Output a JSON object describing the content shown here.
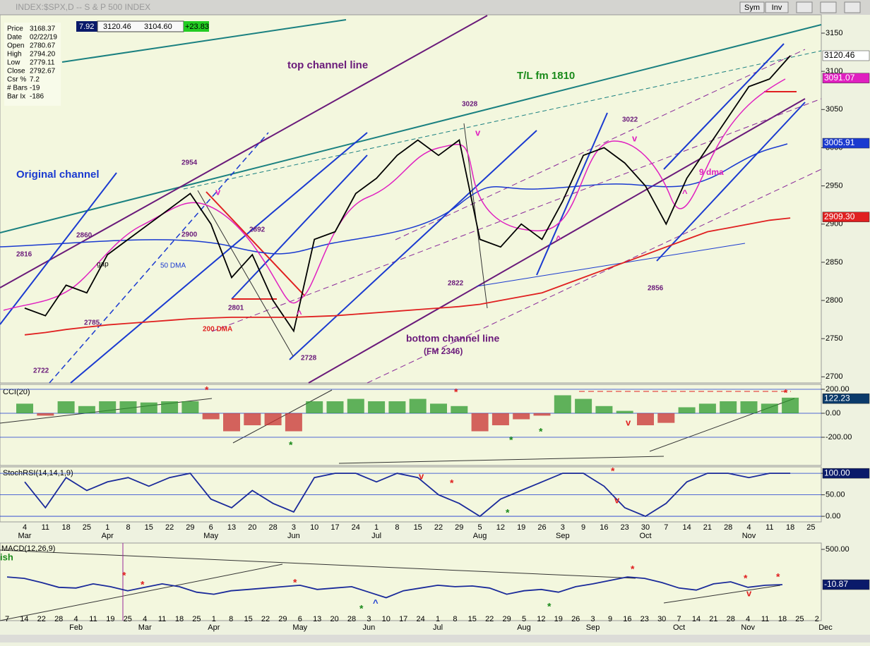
{
  "window": {
    "title": "INDEX:$SPX,D -- S & P 500 INDEX",
    "buttons": [
      "Sym",
      "Inv"
    ],
    "toolbar": [
      "7.92",
      "3120.46",
      "3104.60",
      "+23.83"
    ]
  },
  "info_panel": [
    [
      "Price",
      "3168.37"
    ],
    [
      "Date",
      "02/22/19"
    ],
    [
      "Open",
      "2780.67"
    ],
    [
      "High",
      "2794.20"
    ],
    [
      "Low",
      "2779.11"
    ],
    [
      "Close",
      "2792.67"
    ],
    [
      "Csr %",
      "7.2"
    ],
    [
      "# Bars",
      "-19"
    ],
    [
      "Bar Ix",
      "-186"
    ]
  ],
  "annotations": [
    {
      "text": "top channel line",
      "color": "#6a1a7a"
    },
    {
      "text": "T/L fm 1810",
      "color": "#1a8a1a"
    },
    {
      "text": "Original channel",
      "color": "#1a3ad0"
    },
    {
      "text": "bottom channel line",
      "color": "#6a1a7a"
    },
    {
      "text": "(FM 2346)",
      "color": "#6a1a7a"
    },
    {
      "text": "50 DMA",
      "color": "#1a3ad0"
    },
    {
      "text": "9 dma",
      "color": "#e020c0"
    },
    {
      "text": "2954",
      "color": "#6a1a7a"
    },
    {
      "text": "2860",
      "color": "#6a1a7a"
    },
    {
      "text": "2816",
      "color": "#6a1a7a"
    },
    {
      "text": "2900",
      "color": "#6a1a7a"
    },
    {
      "text": "2892",
      "color": "#6a1a7a"
    },
    {
      "text": "2801",
      "color": "#6a1a7a"
    },
    {
      "text": "2785",
      "color": "#6a1a7a"
    },
    {
      "text": "2722",
      "color": "#6a1a7a"
    },
    {
      "text": "2728",
      "color": "#6a1a7a"
    },
    {
      "text": "3028",
      "color": "#6a1a7a"
    },
    {
      "text": "3022",
      "color": "#6a1a7a"
    },
    {
      "text": "2822",
      "color": "#6a1a7a"
    },
    {
      "text": "2856",
      "color": "#6a1a7a"
    },
    {
      "text": "gap",
      "color": "#000000"
    },
    {
      "text": "v",
      "color": "#e020c0"
    },
    {
      "text": "v",
      "color": "#e020c0"
    },
    {
      "text": "v",
      "color": "#e020c0"
    },
    {
      "text": "^",
      "color": "#e020c0"
    },
    {
      "text": "^",
      "color": "#e020c0"
    },
    {
      "text": "^",
      "color": "#e020c0"
    },
    {
      "text": "*",
      "color": "#e02020"
    },
    {
      "text": "*",
      "color": "#e02020"
    },
    {
      "text": "*",
      "color": "#e02020"
    },
    {
      "text": "*",
      "color": "#1a8a1a"
    },
    {
      "text": "*",
      "color": "#1a8a1a"
    },
    {
      "text": "*",
      "color": "#1a8a1a"
    },
    {
      "text": "v",
      "color": "#e02020"
    },
    {
      "text": "v",
      "color": "#e02020"
    },
    {
      "text": "*",
      "color": "#e02020"
    },
    {
      "text": "*",
      "color": "#e02020"
    },
    {
      "text": "*",
      "color": "#1a8a1a"
    },
    {
      "text": "v",
      "color": "#e02020"
    },
    {
      "text": "*",
      "color": "#e02020"
    },
    {
      "text": "*",
      "color": "#e02020"
    },
    {
      "text": "*",
      "color": "#e02020"
    },
    {
      "text": "*",
      "color": "#e02020"
    },
    {
      "text": "*",
      "color": "#e02020"
    },
    {
      "text": "*",
      "color": "#e02020"
    },
    {
      "text": "*",
      "color": "#1a8a1a"
    },
    {
      "text": "*",
      "color": "#1a8a1a"
    },
    {
      "text": "^",
      "color": "#1a3ad0"
    },
    {
      "text": "v",
      "color": "#e02020"
    },
    {
      "text": "ish",
      "color": "#1a8a1a"
    }
  ],
  "chart_data": [
    {
      "type": "line",
      "categories": [
        4,
        11,
        18,
        25,
        1,
        8,
        15,
        22,
        29,
        6,
        13,
        20,
        28,
        3,
        10,
        17,
        24,
        1,
        8,
        15,
        22,
        29,
        5,
        12,
        19,
        26,
        3,
        9,
        16,
        23,
        30,
        7,
        14,
        21,
        28,
        4,
        11,
        18,
        25
      ],
      "months": [
        "Mar",
        "Apr",
        "May",
        "Jun",
        "Jul",
        "Aug",
        "Sep",
        "Oct",
        "Nov"
      ],
      "series": [
        {
          "color": "#000000",
          "values": [
            2790,
            2780,
            2820,
            2810,
            2860,
            2880,
            2900,
            2920,
            2940,
            2900,
            2830,
            2860,
            2800,
            2760,
            2880,
            2890,
            2940,
            2960,
            2990,
            3010,
            2990,
            3010,
            2880,
            2870,
            2900,
            2880,
            2930,
            2990,
            3000,
            2980,
            2950,
            2900,
            2960,
            3000,
            3040,
            3080,
            3090,
            3120.46,
            null
          ]
        },
        {
          "name": "200 DMA",
          "color": "#e02020",
          "values": [
            2755,
            2758,
            2762,
            2765,
            2768,
            2770,
            2772,
            2774,
            2776,
            2777,
            2778,
            2778,
            2778,
            2778,
            2779,
            2780,
            2782,
            2784,
            2786,
            2788,
            2790,
            2792,
            2795,
            2800,
            2805,
            2810,
            2820,
            2830,
            2840,
            2850,
            2860,
            2870,
            2880,
            2890,
            2895,
            2900,
            2905,
            2908,
            null
          ]
        }
      ],
      "ylim": [
        2692,
        3174
      ],
      "yticks": [
        2700,
        2750,
        2800,
        2850,
        2900,
        2950,
        3000,
        3050,
        3100,
        3150
      ],
      "grid": false,
      "tags": [
        {
          "value": 3120.46,
          "color": "#ffffff",
          "text_color": "#000000"
        },
        {
          "value": 3091.07,
          "color": "#e020c0",
          "text_color": "#ffffff"
        },
        {
          "value": 3005.91,
          "color": "#1a3ad0",
          "text_color": "#ffffff"
        },
        {
          "value": 2909.3,
          "label": "2909.30",
          "color": "#e02020",
          "text_color": "#ffffff"
        }
      ]
    },
    {
      "type": "bar",
      "title": "CCI(20)",
      "values": [
        80,
        -20,
        100,
        60,
        100,
        100,
        90,
        100,
        100,
        -50,
        -150,
        -100,
        -100,
        -150,
        100,
        100,
        120,
        100,
        100,
        120,
        80,
        60,
        -150,
        -100,
        -50,
        -20,
        150,
        120,
        60,
        20,
        -100,
        -80,
        50,
        80,
        100,
        100,
        80,
        130,
        null
      ],
      "pos_color": "#2e9a2e",
      "neg_color": "#c83030",
      "ylim": [
        -435,
        241
      ],
      "yticks": [
        {
          "value": 200,
          "label": "200.00"
        },
        {
          "value": 0,
          "label": "0.00"
        },
        {
          "value": -200,
          "label": "-200.00"
        }
      ],
      "grid": true,
      "tags": [
        {
          "value": 122.23,
          "color": "#0a3a6a",
          "text_color": "#ffffff"
        }
      ]
    },
    {
      "type": "line",
      "title": "StochRSI(14,14,1,9)",
      "series": [
        {
          "color": "#1a2a9a",
          "values": [
            80,
            20,
            90,
            60,
            80,
            90,
            70,
            90,
            100,
            40,
            20,
            60,
            30,
            10,
            90,
            100,
            100,
            80,
            100,
            90,
            50,
            30,
            0,
            40,
            60,
            80,
            100,
            100,
            70,
            20,
            0,
            30,
            80,
            100,
            100,
            90,
            100,
            100,
            null
          ]
        }
      ],
      "ylim": [
        -13,
        115
      ],
      "yticks": [
        {
          "value": 100,
          "label": "100.00"
        },
        {
          "value": 50,
          "label": "50.00"
        },
        {
          "value": 0,
          "label": "0.00"
        }
      ],
      "grid": true,
      "tags": [
        {
          "value": 100,
          "label": "100.00",
          "color": "#0a1a6a",
          "text_color": "#ffffff"
        }
      ]
    },
    {
      "type": "line",
      "title": "MACD(12,26,9)",
      "categories": [
        7,
        14,
        22,
        28,
        4,
        11,
        19,
        25,
        4,
        11,
        18,
        25,
        1,
        8,
        15,
        22,
        29,
        6,
        13,
        20,
        28,
        3,
        10,
        17,
        24,
        1,
        8,
        15,
        22,
        29,
        5,
        12,
        19,
        26,
        3,
        9,
        16,
        23,
        30,
        7,
        14,
        21,
        28,
        4,
        11,
        18,
        25,
        2
      ],
      "months": [
        "Feb",
        "Mar",
        "Apr",
        "May",
        "Jun",
        "Jul",
        "Aug",
        "Sep",
        "Oct",
        "Nov",
        "Dec"
      ],
      "series": [
        {
          "color": "#1a2a9a",
          "values": [
            100,
            80,
            20,
            -50,
            -60,
            0,
            -40,
            -100,
            -50,
            0,
            -40,
            -120,
            -150,
            -100,
            -80,
            -60,
            -40,
            -20,
            -80,
            -60,
            -40,
            -120,
            -200,
            -100,
            -60,
            -20,
            -40,
            -30,
            -60,
            -150,
            -100,
            -80,
            -120,
            -40,
            0,
            50,
            100,
            80,
            20,
            -60,
            -90,
            0,
            30,
            -50,
            -20,
            -10.87,
            null,
            null
          ]
        }
      ],
      "ylim": [
        -532,
        592
      ],
      "yticks": [
        {
          "value": 500,
          "label": "500.00"
        }
      ],
      "grid": false,
      "tags": [
        {
          "value": -10.87,
          "color": "#0a1a6a",
          "text_color": "#ffffff"
        }
      ]
    }
  ]
}
